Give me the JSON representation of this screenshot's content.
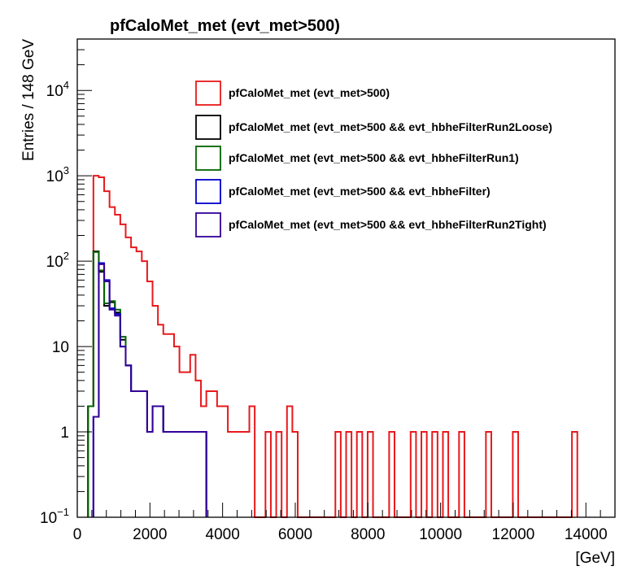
{
  "chart_data": {
    "type": "histogram-step",
    "title": "pfCaloMet_met (evt_met>500)",
    "xlabel": "[GeV]",
    "ylabel": "Entries / 148 GeV",
    "xlim": [
      0,
      14800
    ],
    "ylim": [
      0.1,
      40000
    ],
    "yscale": "log",
    "bin_width": 148,
    "x_ticks": [
      {
        "value": 0,
        "label": "0"
      },
      {
        "value": 2000,
        "label": "2000"
      },
      {
        "value": 4000,
        "label": "4000"
      },
      {
        "value": 6000,
        "label": "6000"
      },
      {
        "value": 8000,
        "label": "8000"
      },
      {
        "value": 10000,
        "label": "10000"
      },
      {
        "value": 12000,
        "label": "12000"
      },
      {
        "value": 14000,
        "label": "14000"
      }
    ],
    "y_ticks": [
      {
        "value": 0.1,
        "base": "10",
        "exp": "−1"
      },
      {
        "value": 1,
        "base": "1",
        "exp": ""
      },
      {
        "value": 10,
        "base": "10",
        "exp": ""
      },
      {
        "value": 100,
        "base": "10",
        "exp": "2"
      },
      {
        "value": 1000,
        "base": "10",
        "exp": "3"
      },
      {
        "value": 10000,
        "base": "10",
        "exp": "4"
      }
    ],
    "legend_position": "top-right",
    "series": [
      {
        "name": "pfCaloMet_met (evt_met>500)",
        "color": "#e8191c",
        "bins": [
          [
            296,
            2
          ],
          [
            444,
            1000
          ],
          [
            592,
            960
          ],
          [
            740,
            660
          ],
          [
            888,
            430
          ],
          [
            1036,
            350
          ],
          [
            1184,
            270
          ],
          [
            1332,
            190
          ],
          [
            1480,
            145
          ],
          [
            1628,
            130
          ],
          [
            1776,
            100
          ],
          [
            1924,
            58
          ],
          [
            2072,
            30
          ],
          [
            2220,
            18
          ],
          [
            2368,
            14
          ],
          [
            2516,
            14
          ],
          [
            2664,
            10
          ],
          [
            2812,
            5
          ],
          [
            2960,
            5
          ],
          [
            3108,
            8
          ],
          [
            3256,
            4
          ],
          [
            3404,
            2
          ],
          [
            3552,
            3
          ],
          [
            3700,
            3
          ],
          [
            3848,
            2
          ],
          [
            3996,
            2
          ],
          [
            4144,
            1
          ],
          [
            4292,
            1
          ],
          [
            4440,
            1
          ],
          [
            4588,
            1
          ],
          [
            4736,
            2
          ],
          [
            5180,
            1
          ],
          [
            5476,
            1
          ],
          [
            5772,
            2
          ],
          [
            5920,
            1
          ],
          [
            7104,
            1
          ],
          [
            7400,
            1
          ],
          [
            7696,
            1
          ],
          [
            7992,
            1
          ],
          [
            8584,
            1
          ],
          [
            9176,
            1
          ],
          [
            9472,
            1
          ],
          [
            9768,
            1
          ],
          [
            10064,
            1
          ],
          [
            10508,
            1
          ],
          [
            11248,
            1
          ],
          [
            11988,
            1
          ],
          [
            13616,
            1
          ]
        ]
      },
      {
        "name": "pfCaloMet_met (evt_met>500 && evt_hbheFilterRun2Loose)",
        "color": "#000000",
        "bins": [
          [
            296,
            2
          ],
          [
            444,
            130
          ],
          [
            592,
            75
          ],
          [
            740,
            30
          ],
          [
            888,
            33
          ],
          [
            1036,
            25
          ],
          [
            1184,
            12
          ],
          [
            1332,
            6
          ],
          [
            1480,
            3
          ],
          [
            1628,
            3
          ],
          [
            1776,
            3
          ],
          [
            1924,
            1
          ],
          [
            2072,
            2
          ],
          [
            2220,
            2
          ],
          [
            2368,
            1
          ],
          [
            2516,
            1
          ],
          [
            2664,
            1
          ],
          [
            2812,
            1
          ],
          [
            2960,
            1
          ],
          [
            3108,
            1
          ],
          [
            3256,
            1
          ],
          [
            3404,
            1
          ]
        ]
      },
      {
        "name": "pfCaloMet_met (evt_met>500 && evt_hbheFilterRun1)",
        "color": "#006400",
        "bins": [
          [
            296,
            2
          ],
          [
            444,
            128
          ],
          [
            592,
            78
          ],
          [
            740,
            32
          ],
          [
            888,
            34
          ],
          [
            1036,
            27
          ],
          [
            1184,
            13
          ],
          [
            1332,
            6
          ],
          [
            1480,
            3
          ],
          [
            1628,
            3
          ],
          [
            1776,
            3
          ],
          [
            1924,
            1
          ],
          [
            2072,
            2
          ],
          [
            2220,
            2
          ],
          [
            2368,
            1
          ],
          [
            2516,
            1
          ],
          [
            2664,
            1
          ],
          [
            2812,
            1
          ],
          [
            2960,
            1
          ],
          [
            3108,
            1
          ],
          [
            3256,
            1
          ],
          [
            3404,
            1
          ]
        ]
      },
      {
        "name": "pfCaloMet_met (evt_met>500 && evt_hbheFilter)",
        "color": "#0000cc",
        "bins": [
          [
            444,
            1.5
          ],
          [
            592,
            95
          ],
          [
            740,
            60
          ],
          [
            888,
            28
          ],
          [
            1036,
            24
          ],
          [
            1184,
            10
          ],
          [
            1332,
            6
          ],
          [
            1480,
            3
          ],
          [
            1628,
            3
          ],
          [
            1776,
            3
          ],
          [
            1924,
            1
          ],
          [
            2072,
            2
          ],
          [
            2220,
            2
          ],
          [
            2368,
            1
          ],
          [
            2516,
            1
          ],
          [
            2664,
            1
          ],
          [
            2812,
            1
          ],
          [
            2960,
            1
          ],
          [
            3108,
            1
          ],
          [
            3256,
            1
          ],
          [
            3404,
            1
          ]
        ]
      },
      {
        "name": "pfCaloMet_met (evt_met>500 && evt_hbheFilterRun2Tight)",
        "color": "#330099",
        "bins": [
          [
            444,
            1.5
          ],
          [
            592,
            92
          ],
          [
            740,
            58
          ],
          [
            888,
            27
          ],
          [
            1036,
            23
          ],
          [
            1184,
            10
          ],
          [
            1332,
            6
          ],
          [
            1480,
            3
          ],
          [
            1628,
            3
          ],
          [
            1776,
            3
          ],
          [
            1924,
            1
          ],
          [
            2072,
            2
          ],
          [
            2220,
            2
          ],
          [
            2368,
            1
          ],
          [
            2516,
            1
          ],
          [
            2664,
            1
          ],
          [
            2812,
            1
          ],
          [
            2960,
            1
          ],
          [
            3108,
            1
          ],
          [
            3256,
            1
          ],
          [
            3404,
            1
          ]
        ]
      }
    ]
  }
}
